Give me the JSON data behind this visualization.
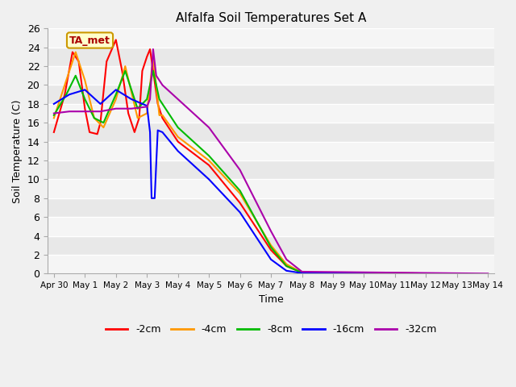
{
  "title": "Alfalfa Soil Temperatures Set A",
  "xlabel": "Time",
  "ylabel": "Soil Temperature (C)",
  "ylim": [
    0,
    26
  ],
  "xlim": [
    -0.2,
    14.2
  ],
  "bg_color": "#f0f0f0",
  "plot_bg_light": "#f0f0f0",
  "plot_bg_dark": "#e0e0e0",
  "colors": {
    "-2cm": "#ff0000",
    "-4cm": "#ff9900",
    "-8cm": "#00bb00",
    "-16cm": "#0000ff",
    "-32cm": "#aa00aa"
  },
  "x_ticks": [
    "Apr 30",
    "May 1",
    "May 2",
    "May 3",
    "May 4",
    "May 5",
    "May 6",
    "May 7",
    "May 8",
    "May 9",
    "May 10",
    "May 11",
    "May 12",
    "May 13",
    "May 14"
  ],
  "series": {
    "-2cm": {
      "x": [
        0,
        0.35,
        0.6,
        0.8,
        1.0,
        1.15,
        1.4,
        1.5,
        1.7,
        2.0,
        2.2,
        2.4,
        2.6,
        2.75,
        2.85,
        3.0,
        3.1,
        3.2,
        3.35,
        3.5,
        4.0,
        5.0,
        6.0,
        7.0,
        7.5,
        8.0,
        13.0
      ],
      "y": [
        15.0,
        19.0,
        23.5,
        22.5,
        17.5,
        15.0,
        14.8,
        16.0,
        22.5,
        24.8,
        21.5,
        17.0,
        15.0,
        16.5,
        21.5,
        23.0,
        23.8,
        21.5,
        18.0,
        16.5,
        14.0,
        11.5,
        7.5,
        2.5,
        0.8,
        0.1,
        0.0
      ]
    },
    "-4cm": {
      "x": [
        0,
        0.4,
        0.7,
        1.0,
        1.3,
        1.6,
        2.0,
        2.3,
        2.7,
        3.0,
        3.2,
        3.4,
        3.5,
        4.0,
        5.0,
        6.0,
        7.0,
        7.5,
        8.0,
        13.0
      ],
      "y": [
        16.5,
        20.5,
        23.5,
        20.5,
        16.5,
        15.5,
        18.5,
        22.0,
        16.5,
        17.0,
        23.0,
        16.8,
        16.8,
        14.5,
        12.0,
        8.5,
        3.0,
        1.0,
        0.1,
        0.0
      ]
    },
    "-8cm": {
      "x": [
        0,
        0.4,
        0.7,
        1.0,
        1.3,
        1.6,
        2.0,
        2.3,
        2.7,
        3.0,
        3.2,
        3.4,
        3.5,
        4.0,
        5.0,
        6.0,
        7.0,
        7.5,
        8.0,
        13.0
      ],
      "y": [
        16.8,
        19.0,
        21.0,
        18.5,
        16.5,
        16.0,
        19.0,
        21.5,
        17.5,
        18.5,
        21.5,
        18.5,
        18.0,
        15.5,
        12.5,
        8.8,
        2.8,
        0.8,
        0.1,
        0.0
      ]
    },
    "-16cm": {
      "x": [
        0,
        0.5,
        1.0,
        1.5,
        2.0,
        2.5,
        3.0,
        3.1,
        3.15,
        3.25,
        3.35,
        3.5,
        4.0,
        5.0,
        6.0,
        7.0,
        7.5,
        8.0,
        13.0
      ],
      "y": [
        18.0,
        19.0,
        19.5,
        18.0,
        19.5,
        18.5,
        17.8,
        15.0,
        8.0,
        8.0,
        15.2,
        15.0,
        13.0,
        10.0,
        6.5,
        1.5,
        0.3,
        0.05,
        0.0
      ]
    },
    "-32cm": {
      "x": [
        0,
        0.5,
        1.0,
        1.5,
        2.0,
        2.5,
        3.0,
        3.1,
        3.2,
        3.3,
        3.5,
        4.0,
        5.0,
        6.0,
        7.0,
        7.5,
        8.0,
        14.0
      ],
      "y": [
        17.0,
        17.2,
        17.2,
        17.2,
        17.5,
        17.5,
        17.7,
        18.5,
        23.8,
        21.0,
        20.0,
        18.5,
        15.5,
        11.0,
        4.5,
        1.5,
        0.2,
        0.0
      ]
    }
  }
}
